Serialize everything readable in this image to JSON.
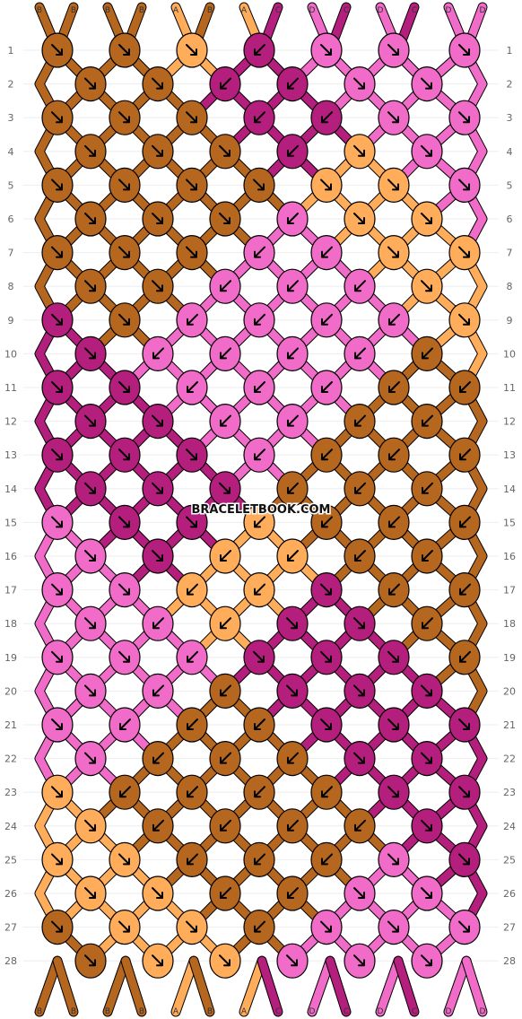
{
  "watermark": "BRACELETBOOK.COM",
  "palette": {
    "A": "#FFAD5B",
    "B": "#B5661F",
    "C": "#B41E7C",
    "D": "#F06CC8"
  },
  "strands_top": [
    "B",
    "B",
    "B",
    "B",
    "A",
    "B",
    "A",
    "C",
    "D",
    "C",
    "D",
    "C",
    "D",
    "D"
  ],
  "strands_bottom": [
    "B",
    "B",
    "B",
    "B",
    "A",
    "B",
    "A",
    "C",
    "D",
    "C",
    "D",
    "C",
    "D",
    "D"
  ],
  "rows": [
    {
      "n": 1,
      "knots": [
        [
          "B",
          "f"
        ],
        [
          "B",
          "f"
        ],
        [
          "A",
          "f"
        ],
        [
          "C",
          "b"
        ],
        [
          "D",
          "f"
        ],
        [
          "D",
          "f"
        ],
        [
          "D",
          "f"
        ]
      ]
    },
    {
      "n": 2,
      "knots": [
        [
          "B",
          "f"
        ],
        [
          "B",
          "f"
        ],
        [
          "C",
          "b"
        ],
        [
          "C",
          "b"
        ],
        [
          "D",
          "f"
        ],
        [
          "D",
          "f"
        ]
      ]
    },
    {
      "n": 3,
      "knots": [
        [
          "B",
          "f"
        ],
        [
          "B",
          "f"
        ],
        [
          "B",
          "f"
        ],
        [
          "C",
          "b"
        ],
        [
          "C",
          "b"
        ],
        [
          "D",
          "f"
        ],
        [
          "D",
          "f"
        ]
      ]
    },
    {
      "n": 4,
      "knots": [
        [
          "B",
          "f"
        ],
        [
          "B",
          "f"
        ],
        [
          "B",
          "f"
        ],
        [
          "C",
          "b"
        ],
        [
          "A",
          "f"
        ],
        [
          "D",
          "f"
        ]
      ]
    },
    {
      "n": 5,
      "knots": [
        [
          "B",
          "f"
        ],
        [
          "B",
          "f"
        ],
        [
          "B",
          "f"
        ],
        [
          "B",
          "f"
        ],
        [
          "A",
          "f"
        ],
        [
          "A",
          "f"
        ],
        [
          "D",
          "f"
        ]
      ]
    },
    {
      "n": 6,
      "knots": [
        [
          "B",
          "f"
        ],
        [
          "B",
          "f"
        ],
        [
          "B",
          "f"
        ],
        [
          "D",
          "b"
        ],
        [
          "A",
          "f"
        ],
        [
          "A",
          "f"
        ]
      ]
    },
    {
      "n": 7,
      "knots": [
        [
          "B",
          "f"
        ],
        [
          "B",
          "f"
        ],
        [
          "B",
          "f"
        ],
        [
          "D",
          "b"
        ],
        [
          "D",
          "b"
        ],
        [
          "A",
          "f"
        ],
        [
          "A",
          "f"
        ]
      ]
    },
    {
      "n": 8,
      "knots": [
        [
          "B",
          "f"
        ],
        [
          "B",
          "f"
        ],
        [
          "D",
          "b"
        ],
        [
          "D",
          "b"
        ],
        [
          "D",
          "b"
        ],
        [
          "A",
          "f"
        ]
      ]
    },
    {
      "n": 9,
      "knots": [
        [
          "C",
          "f"
        ],
        [
          "B",
          "f"
        ],
        [
          "D",
          "b"
        ],
        [
          "D",
          "b"
        ],
        [
          "D",
          "b"
        ],
        [
          "D",
          "b"
        ],
        [
          "A",
          "f"
        ]
      ]
    },
    {
      "n": 10,
      "knots": [
        [
          "C",
          "f"
        ],
        [
          "D",
          "b"
        ],
        [
          "D",
          "b"
        ],
        [
          "D",
          "b"
        ],
        [
          "D",
          "b"
        ],
        [
          "B",
          "b"
        ]
      ]
    },
    {
      "n": 11,
      "knots": [
        [
          "C",
          "f"
        ],
        [
          "C",
          "f"
        ],
        [
          "D",
          "b"
        ],
        [
          "D",
          "b"
        ],
        [
          "D",
          "b"
        ],
        [
          "B",
          "b"
        ],
        [
          "B",
          "b"
        ]
      ]
    },
    {
      "n": 12,
      "knots": [
        [
          "C",
          "f"
        ],
        [
          "C",
          "f"
        ],
        [
          "D",
          "b"
        ],
        [
          "D",
          "b"
        ],
        [
          "B",
          "b"
        ],
        [
          "B",
          "b"
        ]
      ]
    },
    {
      "n": 13,
      "knots": [
        [
          "C",
          "f"
        ],
        [
          "C",
          "f"
        ],
        [
          "C",
          "f"
        ],
        [
          "D",
          "b"
        ],
        [
          "B",
          "b"
        ],
        [
          "B",
          "b"
        ],
        [
          "B",
          "b"
        ]
      ]
    },
    {
      "n": 14,
      "knots": [
        [
          "C",
          "f"
        ],
        [
          "C",
          "f"
        ],
        [
          "C",
          "f"
        ],
        [
          "B",
          "b"
        ],
        [
          "B",
          "b"
        ],
        [
          "B",
          "b"
        ]
      ]
    },
    {
      "n": 15,
      "knots": [
        [
          "D",
          "f"
        ],
        [
          "C",
          "f"
        ],
        [
          "C",
          "f"
        ],
        [
          "A",
          "b"
        ],
        [
          "B",
          "b"
        ],
        [
          "B",
          "b"
        ],
        [
          "B",
          "b"
        ]
      ]
    },
    {
      "n": 16,
      "knots": [
        [
          "D",
          "f"
        ],
        [
          "C",
          "f"
        ],
        [
          "A",
          "b"
        ],
        [
          "A",
          "b"
        ],
        [
          "B",
          "b"
        ],
        [
          "B",
          "b"
        ]
      ]
    },
    {
      "n": 17,
      "knots": [
        [
          "D",
          "f"
        ],
        [
          "D",
          "f"
        ],
        [
          "A",
          "b"
        ],
        [
          "A",
          "b"
        ],
        [
          "C",
          "f"
        ],
        [
          "B",
          "b"
        ],
        [
          "B",
          "b"
        ]
      ]
    },
    {
      "n": 18,
      "knots": [
        [
          "D",
          "f"
        ],
        [
          "D",
          "b"
        ],
        [
          "A",
          "b"
        ],
        [
          "C",
          "f"
        ],
        [
          "C",
          "f"
        ],
        [
          "B",
          "b"
        ]
      ]
    },
    {
      "n": 19,
      "knots": [
        [
          "D",
          "f"
        ],
        [
          "D",
          "f"
        ],
        [
          "D",
          "b"
        ],
        [
          "C",
          "f"
        ],
        [
          "C",
          "f"
        ],
        [
          "C",
          "f"
        ],
        [
          "B",
          "b"
        ]
      ]
    },
    {
      "n": 20,
      "knots": [
        [
          "D",
          "f"
        ],
        [
          "D",
          "b"
        ],
        [
          "B",
          "b"
        ],
        [
          "C",
          "f"
        ],
        [
          "C",
          "f"
        ],
        [
          "C",
          "f"
        ]
      ]
    },
    {
      "n": 21,
      "knots": [
        [
          "D",
          "f"
        ],
        [
          "D",
          "b"
        ],
        [
          "B",
          "b"
        ],
        [
          "B",
          "b"
        ],
        [
          "C",
          "f"
        ],
        [
          "C",
          "f"
        ],
        [
          "C",
          "f"
        ]
      ]
    },
    {
      "n": 22,
      "knots": [
        [
          "D",
          "f"
        ],
        [
          "B",
          "b"
        ],
        [
          "B",
          "b"
        ],
        [
          "B",
          "b"
        ],
        [
          "C",
          "f"
        ],
        [
          "C",
          "f"
        ]
      ]
    },
    {
      "n": 23,
      "knots": [
        [
          "A",
          "f"
        ],
        [
          "B",
          "b"
        ],
        [
          "B",
          "b"
        ],
        [
          "B",
          "b"
        ],
        [
          "B",
          "b"
        ],
        [
          "C",
          "f"
        ],
        [
          "C",
          "f"
        ]
      ]
    },
    {
      "n": 24,
      "knots": [
        [
          "A",
          "f"
        ],
        [
          "B",
          "b"
        ],
        [
          "B",
          "b"
        ],
        [
          "B",
          "b"
        ],
        [
          "B",
          "b"
        ],
        [
          "C",
          "f"
        ]
      ]
    },
    {
      "n": 25,
      "knots": [
        [
          "A",
          "f"
        ],
        [
          "A",
          "f"
        ],
        [
          "B",
          "b"
        ],
        [
          "B",
          "b"
        ],
        [
          "B",
          "b"
        ],
        [
          "D",
          "f"
        ],
        [
          "C",
          "f"
        ]
      ]
    },
    {
      "n": 26,
      "knots": [
        [
          "A",
          "f"
        ],
        [
          "A",
          "f"
        ],
        [
          "B",
          "b"
        ],
        [
          "B",
          "b"
        ],
        [
          "D",
          "f"
        ],
        [
          "D",
          "f"
        ]
      ]
    },
    {
      "n": 27,
      "knots": [
        [
          "B",
          "f"
        ],
        [
          "A",
          "f"
        ],
        [
          "A",
          "f"
        ],
        [
          "B",
          "b"
        ],
        [
          "D",
          "f"
        ],
        [
          "D",
          "f"
        ],
        [
          "D",
          "f"
        ]
      ]
    },
    {
      "n": 28,
      "knots": [
        [
          "B",
          "f"
        ],
        [
          "A",
          "f"
        ],
        [
          "A",
          "f"
        ],
        [
          "D",
          "f"
        ],
        [
          "D",
          "f"
        ],
        [
          "D",
          "f"
        ]
      ]
    }
  ]
}
